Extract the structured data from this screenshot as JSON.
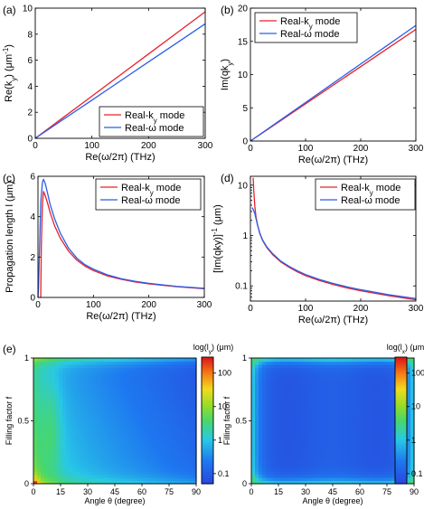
{
  "colors": {
    "real_ky": "#e8202a",
    "real_w": "#2a5ee8"
  },
  "chart_data": [
    {
      "panel": "(a)",
      "type": "line",
      "xlabel": "Re(ω/2π) (THz)",
      "ylabel_parts": [
        "Re(k",
        "y",
        ") (μm",
        "-1",
        ")"
      ],
      "xlim": [
        0,
        300
      ],
      "ylim": [
        0,
        10
      ],
      "xticks": [
        "0",
        "100",
        "200",
        "300"
      ],
      "xtick_values": [
        0,
        100,
        200,
        300
      ],
      "yticks": [
        "0",
        "2",
        "4",
        "6",
        "8",
        "10"
      ],
      "ytick_values": [
        0,
        2,
        4,
        6,
        8,
        10
      ],
      "legend_position": "bottom-right",
      "series": [
        {
          "name_parts": [
            "Real-k",
            "y",
            " mode"
          ],
          "color": "#e8202a",
          "x": [
            0,
            50,
            100,
            150,
            200,
            250,
            300
          ],
          "y": [
            0,
            1.62,
            3.24,
            4.86,
            6.48,
            8.1,
            9.72
          ]
        },
        {
          "name_parts": [
            "Real-ω mode"
          ],
          "color": "#2a5ee8",
          "x": [
            0,
            50,
            100,
            150,
            200,
            250,
            300
          ],
          "y": [
            0,
            1.47,
            2.93,
            4.4,
            5.87,
            7.33,
            8.8
          ]
        }
      ]
    },
    {
      "panel": "(b)",
      "type": "line",
      "xlabel": "Re(ω/2π) (THz)",
      "ylabel_parts": [
        "Im(qk",
        "y",
        ")"
      ],
      "xlim": [
        0,
        300
      ],
      "ylim": [
        0,
        20
      ],
      "xticks": [
        "0",
        "100",
        "200",
        "300"
      ],
      "xtick_values": [
        0,
        100,
        200,
        300
      ],
      "yticks": [
        "0",
        "5",
        "10",
        "15",
        "20"
      ],
      "ytick_values": [
        0,
        5,
        10,
        15,
        20
      ],
      "legend_position": "top-left",
      "series": [
        {
          "name_parts": [
            "Real-k",
            "y",
            " mode"
          ],
          "color": "#e8202a",
          "x": [
            0,
            50,
            100,
            150,
            200,
            250,
            300
          ],
          "y": [
            0,
            2.8,
            5.6,
            8.4,
            11.2,
            14.0,
            16.8
          ]
        },
        {
          "name_parts": [
            "Real-ω mode"
          ],
          "color": "#2a5ee8",
          "x": [
            0,
            50,
            100,
            150,
            200,
            250,
            300
          ],
          "y": [
            0,
            2.9,
            5.8,
            8.7,
            11.6,
            14.5,
            17.4
          ]
        }
      ]
    },
    {
      "panel": "(c)",
      "type": "line",
      "xlabel": "Re(ω/2π) (THz)",
      "ylabel_parts": [
        "Propagation length l (μm)"
      ],
      "xlim": [
        0,
        300
      ],
      "ylim": [
        0,
        6
      ],
      "xticks": [
        "0",
        "100",
        "200",
        "300"
      ],
      "xtick_values": [
        0,
        100,
        200,
        300
      ],
      "yticks": [
        "0",
        "2",
        "4",
        "6"
      ],
      "ytick_values": [
        0,
        2,
        4,
        6
      ],
      "legend_position": "top-right",
      "series": [
        {
          "name_parts": [
            "Real-k",
            "y",
            " mode"
          ],
          "color": "#e8202a",
          "x": [
            5,
            6,
            8,
            10,
            13,
            17,
            22,
            30,
            40,
            55,
            70,
            85,
            100,
            125,
            150,
            175,
            200,
            250,
            300
          ],
          "y": [
            0,
            2.5,
            4.6,
            5.25,
            5.05,
            4.7,
            4.2,
            3.55,
            2.95,
            2.3,
            1.85,
            1.55,
            1.33,
            1.07,
            0.9,
            0.77,
            0.67,
            0.53,
            0.43
          ]
        },
        {
          "name_parts": [
            "Real-ω mode"
          ],
          "color": "#2a5ee8",
          "x": [
            0,
            1,
            3,
            5,
            8,
            10,
            13,
            17,
            22,
            30,
            40,
            55,
            70,
            85,
            100,
            125,
            150,
            175,
            200,
            250,
            300
          ],
          "y": [
            0,
            0.5,
            2.6,
            4.7,
            5.7,
            5.85,
            5.65,
            5.2,
            4.6,
            3.9,
            3.2,
            2.45,
            1.95,
            1.62,
            1.4,
            1.12,
            0.93,
            0.8,
            0.7,
            0.55,
            0.45
          ]
        }
      ]
    },
    {
      "panel": "(d)",
      "type": "line",
      "xlabel": "Re(ω/2π) (THz)",
      "ylabel_parts": [
        "[Im(qky)]",
        "-1",
        " (μm)"
      ],
      "xlim": [
        0,
        300
      ],
      "ylim": [
        0.05,
        15
      ],
      "yscale": "log",
      "xticks": [
        "0",
        "100",
        "200",
        "300"
      ],
      "xtick_values": [
        0,
        100,
        200,
        300
      ],
      "yticks": [
        "0.1",
        "1",
        "10"
      ],
      "ytick_values": [
        0.1,
        1,
        10
      ],
      "legend_position": "top-right",
      "series": [
        {
          "name_parts": [
            "Real-k",
            "y",
            " mode"
          ],
          "color": "#e8202a",
          "x": [
            5,
            6,
            8,
            10,
            13,
            17,
            22,
            30,
            40,
            55,
            70,
            85,
            100,
            125,
            150,
            175,
            200,
            250,
            300
          ],
          "y": [
            14,
            8,
            3.8,
            2.4,
            1.6,
            1.1,
            0.8,
            0.57,
            0.42,
            0.3,
            0.235,
            0.19,
            0.16,
            0.128,
            0.107,
            0.091,
            0.08,
            0.064,
            0.053
          ]
        },
        {
          "name_parts": [
            "Real-ω mode"
          ],
          "color": "#2a5ee8",
          "x": [
            3,
            5,
            8,
            10,
            13,
            17,
            22,
            30,
            40,
            55,
            70,
            85,
            100,
            125,
            150,
            175,
            200,
            250,
            300
          ],
          "y": [
            3.6,
            3.3,
            2.7,
            2.2,
            1.6,
            1.12,
            0.82,
            0.59,
            0.44,
            0.31,
            0.245,
            0.2,
            0.168,
            0.134,
            0.112,
            0.096,
            0.084,
            0.067,
            0.056
          ]
        }
      ]
    },
    {
      "panel": "(e)",
      "type": "heatmap",
      "xlabel": "Angle θ (degree)",
      "ylabel": "Filling factor f",
      "colorbar_title_parts": [
        "log(l",
        "y",
        ") (μm)"
      ],
      "xlim": [
        0,
        90
      ],
      "ylim": [
        0,
        1
      ],
      "xticks": [
        "0",
        "15",
        "30",
        "45",
        "60",
        "75",
        "90"
      ],
      "xtick_values": [
        0,
        15,
        30,
        45,
        60,
        75,
        90
      ],
      "yticks": [
        "0",
        "0.5",
        "1"
      ],
      "ytick_values": [
        0,
        0.5,
        1
      ],
      "colorbar_ticks": [
        "0.1",
        "1",
        "10",
        "100"
      ],
      "colorbar_tick_values": [
        0.1,
        1,
        10,
        100
      ],
      "colorbar_range": [
        0.05,
        300
      ]
    },
    {
      "panel": "(e) right",
      "type": "heatmap",
      "xlabel": "Angle θ (degree)",
      "ylabel": "Filling factor f",
      "colorbar_title_parts": [
        "log(l",
        "x",
        ") (μm)"
      ],
      "xlim": [
        0,
        90
      ],
      "ylim": [
        0,
        1
      ],
      "xticks": [
        "0",
        "15",
        "30",
        "45",
        "60",
        "75",
        "90"
      ],
      "xtick_values": [
        0,
        15,
        30,
        45,
        60,
        75,
        90
      ],
      "yticks": [
        "0",
        "0.5",
        "1"
      ],
      "ytick_values": [
        0,
        0.5,
        1
      ],
      "colorbar_ticks": [
        "0.1",
        "1",
        "10",
        "100"
      ],
      "colorbar_tick_values": [
        0.1,
        1,
        10,
        100
      ],
      "colorbar_range": [
        0.05,
        300
      ]
    }
  ]
}
